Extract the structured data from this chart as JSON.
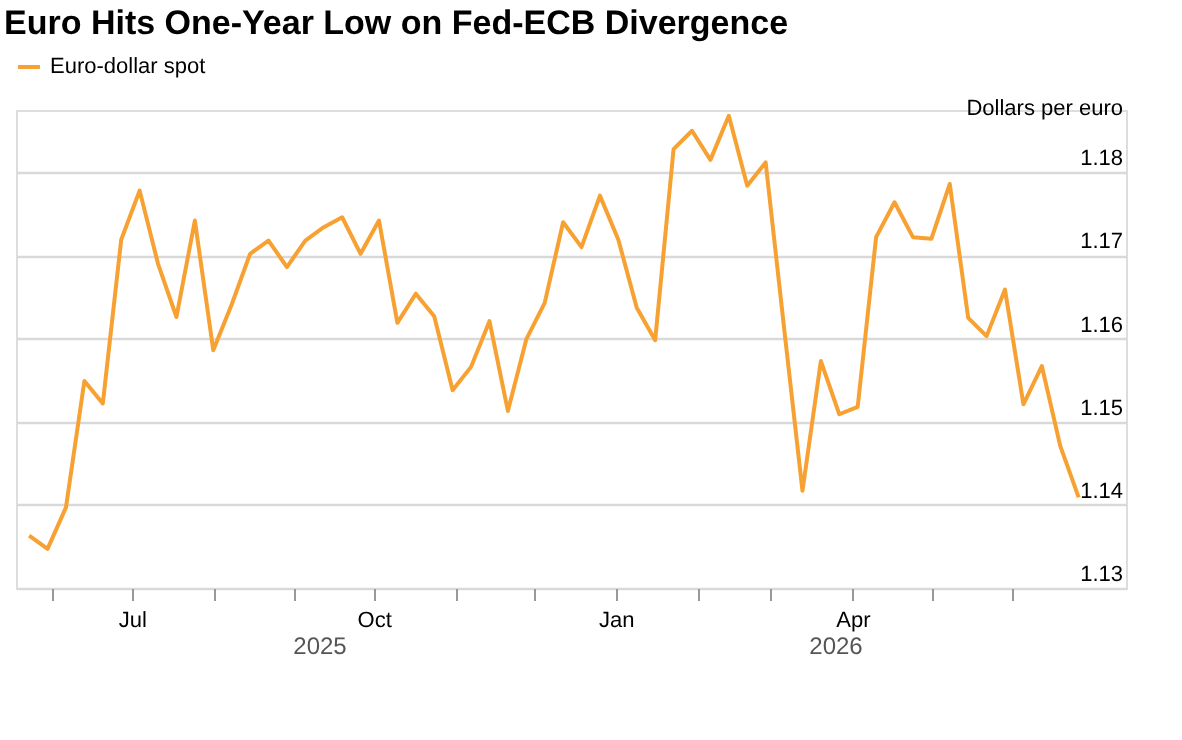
{
  "chart_data": {
    "type": "line",
    "title": "Euro Hits One-Year Low on Fed-ECB Divergence",
    "ylabel": "Dollars per euro",
    "x": [
      "2025-05-23",
      "2025-05-30",
      "2025-06-06",
      "2025-06-13",
      "2025-06-20",
      "2025-06-27",
      "2025-07-04",
      "2025-07-11",
      "2025-07-18",
      "2025-07-25",
      "2025-08-01",
      "2025-08-08",
      "2025-08-15",
      "2025-08-22",
      "2025-08-29",
      "2025-09-05",
      "2025-09-12",
      "2025-09-19",
      "2025-09-26",
      "2025-10-03",
      "2025-10-10",
      "2025-10-17",
      "2025-10-24",
      "2025-10-31",
      "2025-11-07",
      "2025-11-14",
      "2025-11-21",
      "2025-11-28",
      "2025-12-05",
      "2025-12-12",
      "2025-12-19",
      "2025-12-26",
      "2026-01-02",
      "2026-01-09",
      "2026-01-16",
      "2026-01-23",
      "2026-01-30",
      "2026-02-06",
      "2026-02-13",
      "2026-02-20",
      "2026-02-27",
      "2026-03-06",
      "2026-03-13",
      "2026-03-20",
      "2026-03-27",
      "2026-04-03",
      "2026-04-10",
      "2026-04-17",
      "2026-04-24",
      "2026-05-01",
      "2026-05-08",
      "2026-05-15",
      "2026-05-22",
      "2026-05-29",
      "2026-06-05",
      "2026-06-12",
      "2026-06-19",
      "2026-06-26"
    ],
    "series": [
      {
        "name": "Euro-dollar spot",
        "color": "#f7a133",
        "values": [
          1.1363,
          1.1347,
          1.1397,
          1.1549,
          1.1522,
          1.1719,
          1.1778,
          1.169,
          1.1626,
          1.1742,
          1.1586,
          1.1641,
          1.1702,
          1.1718,
          1.1686,
          1.1718,
          1.1734,
          1.1746,
          1.1702,
          1.1742,
          1.1619,
          1.1654,
          1.1627,
          1.1538,
          1.1566,
          1.1621,
          1.1513,
          1.1599,
          1.1643,
          1.174,
          1.171,
          1.1772,
          1.1719,
          1.1637,
          1.1598,
          1.1828,
          1.185,
          1.1815,
          1.1868,
          1.1784,
          1.1812,
          1.1613,
          1.1417,
          1.1573,
          1.1509,
          1.1518,
          1.1722,
          1.1764,
          1.1722,
          1.172,
          1.1786,
          1.1625,
          1.1603,
          1.1659,
          1.1521,
          1.1567,
          1.1471,
          1.1409
        ]
      }
    ],
    "xlim": [
      "2025-05-18",
      "2026-07-14"
    ],
    "xticks": [
      {
        "value": "2025-06-01",
        "label": null
      },
      {
        "value": "2025-07-01",
        "label": "Jul"
      },
      {
        "value": "2025-08-01",
        "label": null
      },
      {
        "value": "2025-09-01",
        "label": null
      },
      {
        "value": "2025-10-01",
        "label": "Oct"
      },
      {
        "value": "2025-11-01",
        "label": null
      },
      {
        "value": "2025-12-01",
        "label": null
      },
      {
        "value": "2026-01-01",
        "label": "Jan"
      },
      {
        "value": "2026-02-01",
        "label": null
      },
      {
        "value": "2026-03-01",
        "label": null
      },
      {
        "value": "2026-04-01",
        "label": "Apr"
      },
      {
        "value": "2026-05-01",
        "label": null
      },
      {
        "value": "2026-06-01",
        "label": null
      }
    ],
    "ylim": [
      1.13,
      1.1875
    ],
    "yticks": [
      1.13,
      1.14,
      1.15,
      1.16,
      1.17,
      1.18
    ],
    "annotations": [
      "2025",
      "2026"
    ],
    "grid": "y",
    "legend": "top left",
    "marker": "none",
    "line_style": "solid"
  }
}
